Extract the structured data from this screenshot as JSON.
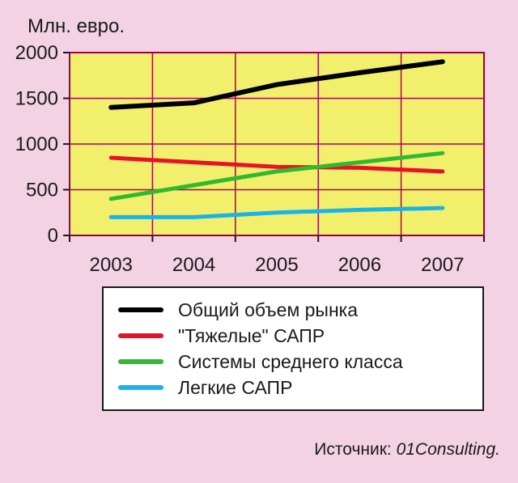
{
  "chart_data": {
    "type": "line",
    "ylabel": "Млн. евро.",
    "categories": [
      "2003",
      "2004",
      "2005",
      "2006",
      "2007"
    ],
    "y_ticks": [
      0,
      500,
      1000,
      1500,
      2000
    ],
    "ylim": [
      0,
      2000
    ],
    "grid": true,
    "legend_position": "bottom",
    "plot_background": "#f2ef6c",
    "grid_color": "#b0005a",
    "series": [
      {
        "name": "Общий объем рынка",
        "color": "#000000",
        "values": [
          1400,
          1450,
          1650,
          1780,
          1900
        ]
      },
      {
        "name": "\"Тяжелые\" САПР",
        "color": "#e8102a",
        "values": [
          850,
          800,
          750,
          740,
          700
        ]
      },
      {
        "name": "Системы среднего класса",
        "color": "#2fba2f",
        "values": [
          400,
          550,
          700,
          800,
          900
        ]
      },
      {
        "name": "Легкие САПР",
        "color": "#16b4ea",
        "values": [
          200,
          200,
          250,
          280,
          300
        ]
      }
    ]
  },
  "source": {
    "prefix": "Источник: ",
    "name": "01Consulting."
  }
}
